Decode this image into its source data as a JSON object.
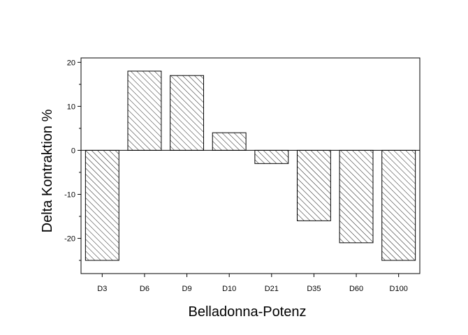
{
  "chart_data": {
    "type": "bar",
    "title": "",
    "xlabel": "Belladonna-Potenz",
    "ylabel": "Delta Kontraktion %",
    "categories": [
      "D3",
      "D6",
      "D9",
      "D10",
      "D21",
      "D35",
      "D60",
      "D100"
    ],
    "values": [
      -25,
      18,
      17,
      4,
      -3,
      -16,
      -21,
      -25
    ],
    "ylim": [
      -28,
      21
    ],
    "yticks": [
      -20,
      -10,
      0,
      10,
      20
    ],
    "ytick_labels": [
      "-20",
      "-10",
      "0",
      "10",
      "20"
    ],
    "grid": false,
    "legend": "none",
    "bar_fill": "diagonal-hatch",
    "colors": {
      "bar_stroke": "#000000",
      "hatch": "#000000",
      "background": "#ffffff"
    }
  }
}
